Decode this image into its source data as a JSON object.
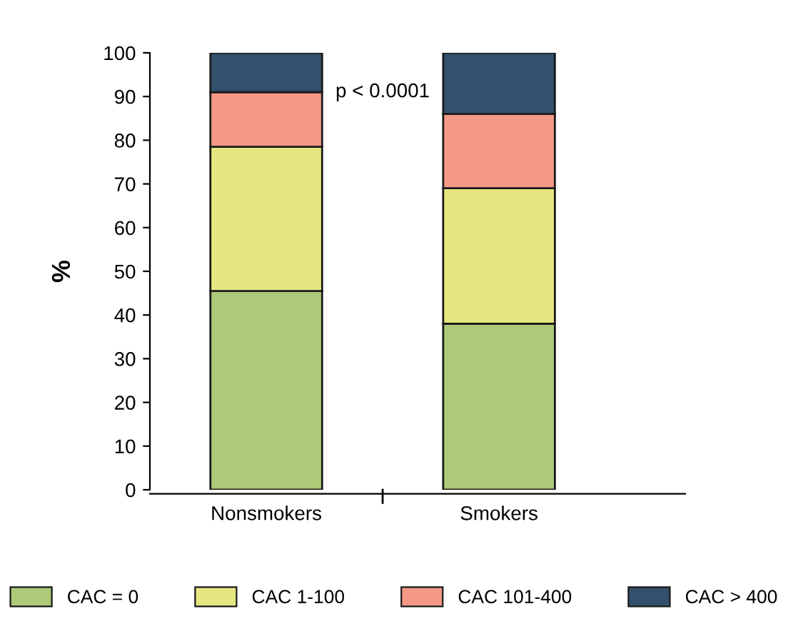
{
  "chart_data": {
    "type": "bar",
    "stacked": true,
    "ylabel": "%",
    "categories": [
      "Nonsmokers",
      "Smokers"
    ],
    "series": [
      {
        "name": "CAC = 0",
        "color": "#adca78",
        "values": [
          45.5,
          38
        ]
      },
      {
        "name": "CAC 1-100",
        "color": "#e6e780",
        "values": [
          33,
          31
        ]
      },
      {
        "name": "CAC 101-400",
        "color": "#f39986",
        "values": [
          12.5,
          17
        ]
      },
      {
        "name": "CAC > 400",
        "color": "#33506d",
        "values": [
          9,
          14
        ]
      }
    ],
    "ylim": [
      0,
      100
    ],
    "yticks": [
      0,
      10,
      20,
      30,
      40,
      50,
      60,
      70,
      80,
      90,
      100
    ],
    "annotations": [
      "p < 0.0001"
    ],
    "grid": false,
    "legend": "bottom"
  }
}
